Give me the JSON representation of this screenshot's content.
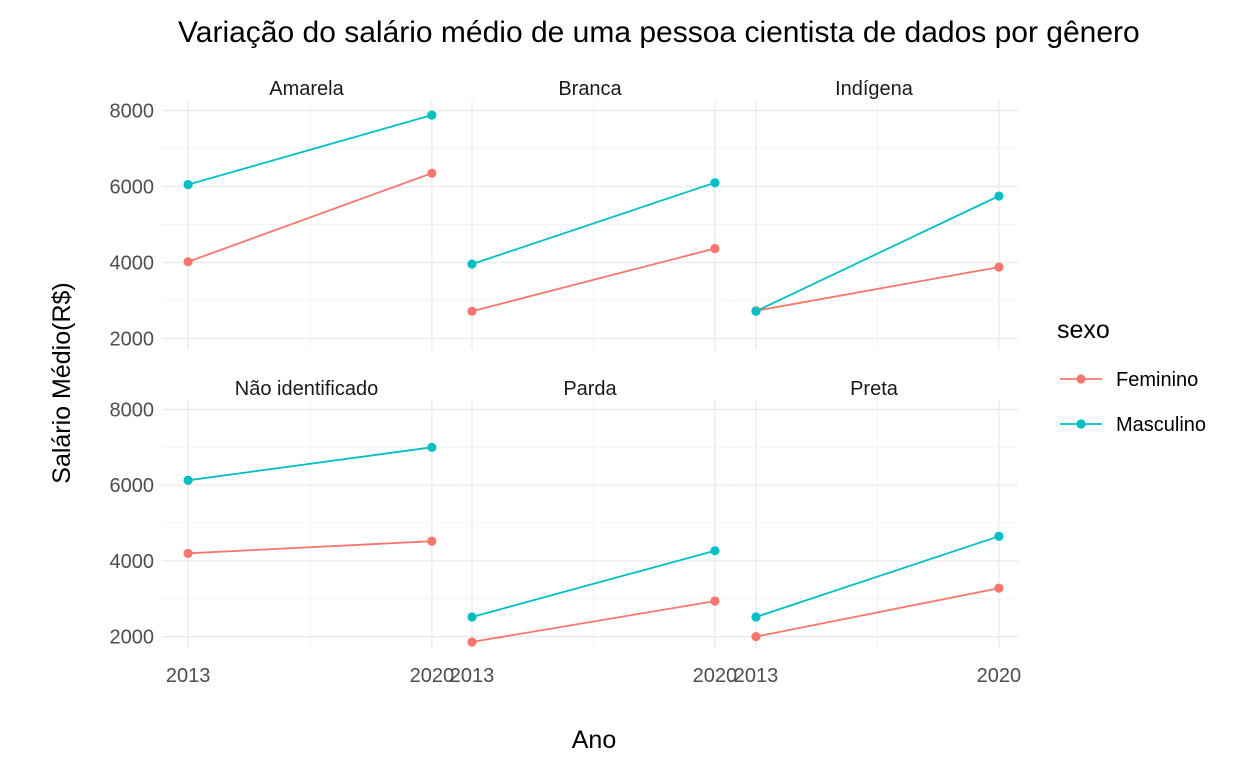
{
  "chart_data": {
    "type": "line",
    "title": "Variação do salário médio de uma pessoa cientista de dados por gênero",
    "xlabel": "Ano",
    "ylabel": "Salário Médio(R$)",
    "x_ticks": [
      "2013",
      "2020"
    ],
    "y_ticks": [
      "2000",
      "4000",
      "6000",
      "8000"
    ],
    "x_values": [
      2013,
      2020
    ],
    "xlim": [
      2012.25,
      2020.55
    ],
    "ylim": [
      1700,
      8250
    ],
    "grid": true,
    "legend": {
      "title": "sexo",
      "placement": "right",
      "entries": [
        {
          "name": "Feminino",
          "color": "#F8766D"
        },
        {
          "name": "Masculino",
          "color": "#00BFC4"
        }
      ]
    },
    "facets": [
      {
        "name": "Amarela",
        "series": [
          {
            "name": "Feminino",
            "values": [
              4020,
              6350
            ]
          },
          {
            "name": "Masculino",
            "values": [
              6050,
              7880
            ]
          }
        ]
      },
      {
        "name": "Branca",
        "series": [
          {
            "name": "Feminino",
            "values": [
              2720,
              4370
            ]
          },
          {
            "name": "Masculino",
            "values": [
              3960,
              6100
            ]
          }
        ]
      },
      {
        "name": "Indígena",
        "series": [
          {
            "name": "Feminino",
            "values": [
              2730,
              3880
            ]
          },
          {
            "name": "Masculino",
            "values": [
              2720,
              5750
            ]
          }
        ]
      },
      {
        "name": "Não identificado",
        "series": [
          {
            "name": "Feminino",
            "values": [
              4200,
              4520
            ]
          },
          {
            "name": "Masculino",
            "values": [
              6130,
              7000
            ]
          }
        ]
      },
      {
        "name": "Parda",
        "series": [
          {
            "name": "Feminino",
            "values": [
              1860,
              2940
            ]
          },
          {
            "name": "Masculino",
            "values": [
              2520,
              4270
            ]
          }
        ]
      },
      {
        "name": "Preta",
        "series": [
          {
            "name": "Feminino",
            "values": [
              2000,
              3280
            ]
          },
          {
            "name": "Masculino",
            "values": [
              2520,
              4650
            ]
          }
        ]
      }
    ]
  }
}
